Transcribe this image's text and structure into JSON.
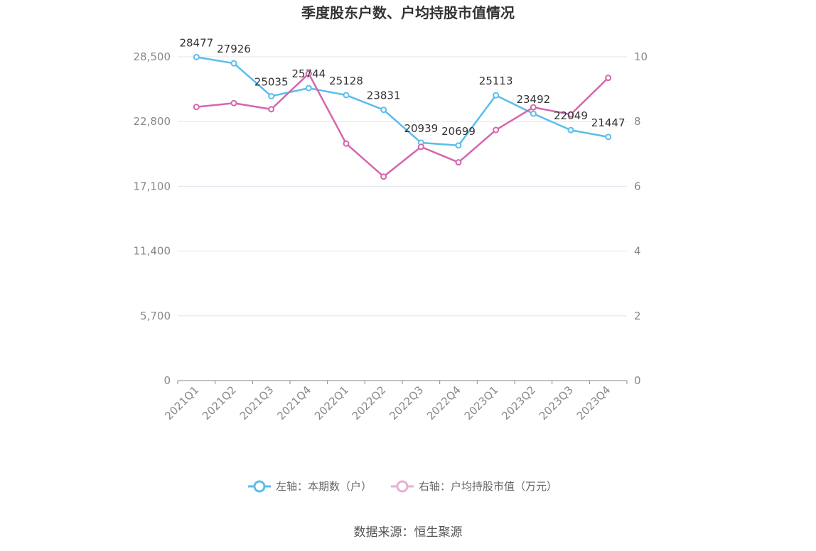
{
  "title": "季度股东户数、户均持股市值情况",
  "source": "数据来源：恒生聚源",
  "colors": {
    "left": "#5bbdeb",
    "right": "#d466ad",
    "right_legend": "#e6b0d4"
  },
  "chart_data": {
    "type": "line",
    "categories": [
      "2021Q1",
      "2021Q2",
      "2021Q3",
      "2021Q4",
      "2022Q1",
      "2022Q2",
      "2022Q3",
      "2022Q4",
      "2023Q1",
      "2023Q2",
      "2023Q3",
      "2023Q4"
    ],
    "series": [
      {
        "name": "左轴：本期数（户）",
        "axis": "left",
        "values": [
          28477,
          27926,
          25035,
          25744,
          25128,
          23831,
          20939,
          20699,
          25113,
          23492,
          22049,
          21447
        ],
        "labels_shown": true
      },
      {
        "name": "右轴：户均持股市值（万元）",
        "axis": "right",
        "values": [
          8.45,
          8.57,
          8.38,
          9.48,
          7.32,
          6.3,
          7.22,
          6.74,
          7.74,
          8.44,
          8.22,
          9.35
        ],
        "labels_shown": false
      }
    ],
    "y_left": {
      "min": 0,
      "max": 28500,
      "ticks": [
        0,
        5700,
        11400,
        17100,
        22800,
        28500
      ],
      "tick_labels": [
        "0",
        "5,700",
        "11,400",
        "17,100",
        "22,800",
        "28,500"
      ]
    },
    "y_right": {
      "min": 0,
      "max": 10,
      "ticks": [
        0,
        2,
        4,
        6,
        8,
        10
      ],
      "tick_labels": [
        "0",
        "2",
        "4",
        "6",
        "8",
        "10"
      ]
    },
    "grid": true,
    "legend_position": "bottom"
  }
}
